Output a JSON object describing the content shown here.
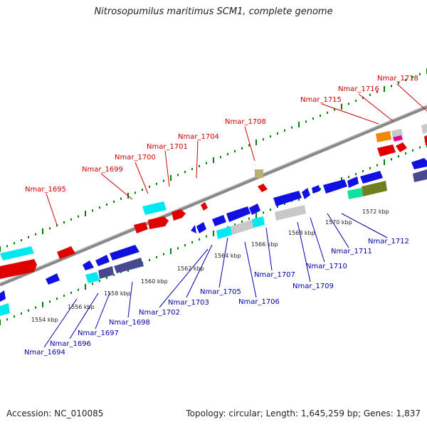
{
  "title": "Nitrosopumilus maritimus SCM1, complete genome",
  "footer": {
    "accession": "Accession: NC_010085",
    "stats": "Topology: circular; Length: 1,645,259 bp; Genes: 1,837"
  },
  "colors": {
    "forward_gene": "#e00000",
    "reverse_gene": "#1010e0",
    "backbone": "#888888",
    "tick": "#008000",
    "label_top": "#cc0000",
    "label_bottom": "#0000aa"
  },
  "kbp_labels": [
    "1554 kbp",
    "1556 kbp",
    "1558 kbp",
    "1560 kbp",
    "1562 kbp",
    "1564 kbp",
    "1566 kbp",
    "1568 kbp",
    "1570 kbp",
    "1572 kbp"
  ],
  "top_genes": [
    "Nmar_1695",
    "Nmar_1699",
    "Nmar_1700",
    "Nmar_1701",
    "Nmar_1704",
    "Nmar_1708",
    "Nmar_1715",
    "Nmar_1716",
    "Nmar_1718"
  ],
  "bottom_genes": [
    "Nmar_1694",
    "Nmar_1696",
    "Nmar_1697",
    "Nmar_1698",
    "Nmar_1702",
    "Nmar_1703",
    "Nmar_1705",
    "Nmar_1706",
    "Nmar_1707",
    "Nmar_1709",
    "Nmar_1710",
    "Nmar_1711",
    "Nmar_1712"
  ]
}
